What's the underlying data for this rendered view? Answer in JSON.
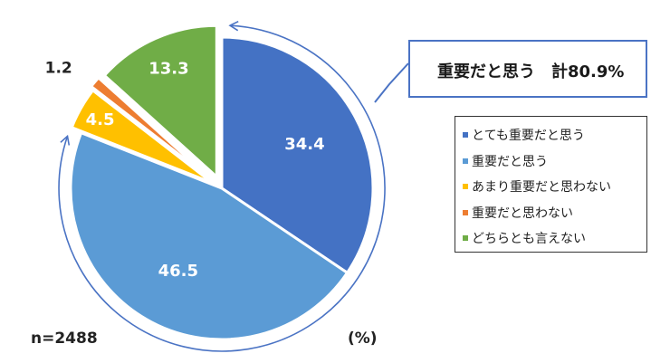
{
  "chart_data": {
    "type": "pie",
    "slices": [
      {
        "label": "とても重要だと思う",
        "value": 34.4,
        "display": "34.4",
        "color": "#4472c4"
      },
      {
        "label": "重要だと思う",
        "value": 46.5,
        "display": "46.5",
        "color": "#5b9bd5"
      },
      {
        "label": "あまり重要だと思わない",
        "value": 4.5,
        "display": "4.5",
        "color": "#ffc000"
      },
      {
        "label": "重要だと思わない",
        "value": 1.2,
        "display": "1.2",
        "color": "#ed7d31"
      },
      {
        "label": "どちらとも言えない",
        "value": 13.3,
        "display": "13.3",
        "color": "#70ad47"
      }
    ],
    "callout": "重要だと思う　計80.9%",
    "sample_size": "n=2488",
    "unit": "(%)",
    "legend_position": "right"
  }
}
